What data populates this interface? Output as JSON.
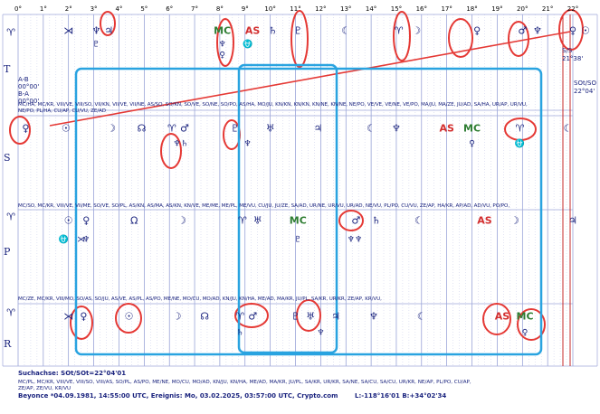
{
  "degree_scale": [
    "0°",
    "1°",
    "2°",
    "3°",
    "4°",
    "5°",
    "6°",
    "7°",
    "8°",
    "9°",
    "10°",
    "11°",
    "12°",
    "13°",
    "14°",
    "15°",
    "16°",
    "17°",
    "18°",
    "19°",
    "20°",
    "21°",
    "22°"
  ],
  "rows": {
    "T": {
      "label": "T"
    },
    "S": {
      "label": "S"
    },
    "P": {
      "label": "P"
    },
    "R": {
      "label": "R"
    }
  },
  "row_start_glyph": "♈",
  "t_row": {
    "glyphs": [
      {
        "deg": 2.0,
        "sym": "⋊",
        "color": "blue"
      },
      {
        "deg": 3.1,
        "sym": "♆",
        "color": "blue"
      },
      {
        "deg": 3.6,
        "sym": "♃",
        "color": "blue"
      },
      {
        "deg": 8.1,
        "sym": "MC",
        "color": "green"
      },
      {
        "deg": 9.3,
        "sym": "AS",
        "color": "red"
      },
      {
        "deg": 10.1,
        "sym": "♄",
        "color": "blue"
      },
      {
        "deg": 11.1,
        "sym": "♇",
        "color": "blue"
      },
      {
        "deg": 13.0,
        "sym": "☾",
        "color": "blue"
      },
      {
        "deg": 15.1,
        "sym": "♈",
        "color": "blue"
      },
      {
        "deg": 15.8,
        "sym": "☽",
        "color": "blue"
      },
      {
        "deg": 18.2,
        "sym": "♀",
        "color": "blue"
      },
      {
        "deg": 20.0,
        "sym": "♂",
        "color": "blue"
      },
      {
        "deg": 20.6,
        "sym": "♆",
        "color": "blue"
      },
      {
        "deg": 22.0,
        "sym": "♀",
        "color": "blue"
      },
      {
        "deg": 22.5,
        "sym": "☉",
        "color": "blue"
      }
    ],
    "sub_glyphs": [
      {
        "deg": 3.1,
        "sym": "♇",
        "color": "blue"
      },
      {
        "deg": 8.1,
        "sym": "♆",
        "color": "blue"
      },
      {
        "deg": 8.1,
        "sym": "♀",
        "color": "blue"
      },
      {
        "deg": 9.1,
        "sym": "⛎",
        "color": "blue"
      }
    ],
    "info_ab": "A-B",
    "info_ab_val": "00°00'",
    "info_ba": "B-A",
    "info_ba_val": "00°00'",
    "right_label_1": "S/S",
    "right_val_1": "21°38'",
    "right_label_2": "SOt/SO",
    "right_val_2": "22°04'"
  },
  "s_row": {
    "glyphs": [
      {
        "deg": 0.3,
        "sym": "♀",
        "color": "blue"
      },
      {
        "deg": 1.9,
        "sym": "☉",
        "color": "blue"
      },
      {
        "deg": 3.7,
        "sym": "☽",
        "color": "blue"
      },
      {
        "deg": 4.9,
        "sym": "☊",
        "color": "blue"
      },
      {
        "deg": 6.1,
        "sym": "♈",
        "color": "blue"
      },
      {
        "deg": 6.6,
        "sym": "♂",
        "color": "blue"
      },
      {
        "deg": 8.6,
        "sym": "♇",
        "color": "blue"
      },
      {
        "deg": 10.0,
        "sym": "♅",
        "color": "blue"
      },
      {
        "deg": 11.9,
        "sym": "♃",
        "color": "blue"
      },
      {
        "deg": 14.0,
        "sym": "☾",
        "color": "blue"
      },
      {
        "deg": 15.0,
        "sym": "♆",
        "color": "blue"
      },
      {
        "deg": 17.0,
        "sym": "AS",
        "color": "red"
      },
      {
        "deg": 18.0,
        "sym": "MC",
        "color": "green"
      },
      {
        "deg": 19.9,
        "sym": "♈",
        "color": "blue"
      },
      {
        "deg": 21.8,
        "sym": "☾",
        "color": "blue"
      }
    ],
    "sub_glyphs": [
      {
        "deg": 6.3,
        "sym": "♆",
        "color": "blue"
      },
      {
        "deg": 6.6,
        "sym": "♄",
        "color": "blue"
      },
      {
        "deg": 9.1,
        "sym": "♆",
        "color": "blue"
      },
      {
        "deg": 18.0,
        "sym": "♀",
        "color": "blue"
      },
      {
        "deg": 19.9,
        "sym": "⛎",
        "color": "blue"
      }
    ],
    "aspects_top": [
      "MC/HA, MC/KR, VIII/VE, VIII/SO, VII/KN, VII/VE, VII/NE, AS/SO, SO/KN, SO/VE, SO/NE, SO/PO, AS/HA, MO/JU, KN/KN, KN/KN, KN/NE, KN/NE, NE/PO, VE/VE, VE/NE, VE/PO, MA/JU, MA/ZE, JU/AD, SA/HA, UR/AP, UR/VU,",
      "NE/PO, PL/HA, CU/AP, CU/VU, ZE/AD"
    ]
  },
  "p_row": {
    "glyphs": [
      {
        "deg": 2.0,
        "sym": "☉",
        "color": "blue"
      },
      {
        "deg": 2.7,
        "sym": "♀",
        "color": "blue"
      },
      {
        "deg": 4.6,
        "sym": "Ω",
        "color": "blue"
      },
      {
        "deg": 6.5,
        "sym": "☽",
        "color": "blue"
      },
      {
        "deg": 8.9,
        "sym": "♈",
        "color": "blue"
      },
      {
        "deg": 9.5,
        "sym": "♅",
        "color": "blue"
      },
      {
        "deg": 11.1,
        "sym": "MC",
        "color": "green"
      },
      {
        "deg": 13.4,
        "sym": "♂",
        "color": "blue"
      },
      {
        "deg": 14.2,
        "sym": "♄",
        "color": "blue"
      },
      {
        "deg": 15.9,
        "sym": "☾",
        "color": "blue"
      },
      {
        "deg": 18.5,
        "sym": "AS",
        "color": "red"
      },
      {
        "deg": 19.7,
        "sym": "☽",
        "color": "blue"
      },
      {
        "deg": 22.0,
        "sym": "♃",
        "color": "blue"
      }
    ],
    "sub_glyphs": [
      {
        "deg": 1.8,
        "sym": "⛎",
        "color": "blue"
      },
      {
        "deg": 2.7,
        "sym": "♆",
        "color": "blue"
      },
      {
        "deg": 2.5,
        "sym": "⋊",
        "color": "blue"
      },
      {
        "deg": 11.1,
        "sym": "♇",
        "color": "blue"
      },
      {
        "deg": 13.2,
        "sym": "♆",
        "color": "blue"
      },
      {
        "deg": 13.5,
        "sym": "♆",
        "color": "blue"
      }
    ],
    "aspects_top": [
      "MC/SO, MC/KR, VIII/VE, VII/ME, SO/VE, SO/PL, AS/KN, AS/MA, AS/KN, KN/VE, ME/ME, ME/PL, ME/VU, CU/JU, JU/ZE, SA/AD, UR/NE, UR/VU, UR/AD, NE/VU, PL/PO, CU/VU, ZE/AP, HA/KR, AP/AD, AD/VU, PO/PO,"
    ]
  },
  "r_row": {
    "glyphs": [
      {
        "deg": 2.0,
        "sym": "⋊",
        "color": "blue"
      },
      {
        "deg": 2.6,
        "sym": "♀",
        "color": "blue"
      },
      {
        "deg": 4.4,
        "sym": "☉",
        "color": "blue"
      },
      {
        "deg": 6.3,
        "sym": "☽",
        "color": "blue"
      },
      {
        "deg": 7.4,
        "sym": "☊",
        "color": "blue"
      },
      {
        "deg": 8.8,
        "sym": "♈",
        "color": "blue"
      },
      {
        "deg": 9.3,
        "sym": "♂",
        "color": "blue"
      },
      {
        "deg": 11.0,
        "sym": "♇",
        "color": "blue"
      },
      {
        "deg": 11.6,
        "sym": "♅",
        "color": "blue"
      },
      {
        "deg": 12.6,
        "sym": "♃",
        "color": "blue"
      },
      {
        "deg": 14.1,
        "sym": "♆",
        "color": "blue"
      },
      {
        "deg": 16.0,
        "sym": "☾",
        "color": "blue"
      },
      {
        "deg": 19.2,
        "sym": "AS",
        "color": "red"
      },
      {
        "deg": 20.1,
        "sym": "MC",
        "color": "green"
      }
    ],
    "sub_glyphs": [
      {
        "deg": 8.8,
        "sym": "♄",
        "color": "blue"
      },
      {
        "deg": 12.0,
        "sym": "♆",
        "color": "blue"
      },
      {
        "deg": 20.1,
        "sym": "♀",
        "color": "blue"
      }
    ],
    "aspects_top": [
      "MC/ZE, MC/KR, VIII/MO, SO/AS, SO/JU, AS/VE, AS/PL, AS/PO, ME/NE, MO/CU, MO/AD, KN/JU, KN/HA, ME/AD, MA/KR, JU/PL, SA/KR, UR/KR, ZE/AP, KR/VU,"
    ]
  },
  "footer": {
    "search_axis": "Suchachse: SOt/SOt=22°04'01",
    "aspects": [
      "MC/PL, MC/KR, VIII/VE, VIII/SO, VIII/AS, SO/PL, AS/PO, ME/NE, MO/CU, MO/AD, KN/JU, KN/HA, ME/AD, MA/KR, JU/PL, SA/KR, UR/KR, SA/NE, SA/CU, SA/CU, UR/KR, NE/AP, PL/PO, CU/AP,",
      "ZE/AP, ZE/VU, KR/VU"
    ],
    "info_line": "Beyonce  *04.09.1981, 14:55:00 UTC, Ereignis: Mo, 03.02.2025, 03:57:00 UTC, Crypto.com",
    "coords": "L:-118°16'01 B:+34°02'34"
  },
  "colors": {
    "ink": "#1a237e",
    "red_highlight": "#e53935",
    "cyan_box": "#29a3e0",
    "green_mc": "#2e7d32",
    "red_as": "#d32f2f"
  }
}
